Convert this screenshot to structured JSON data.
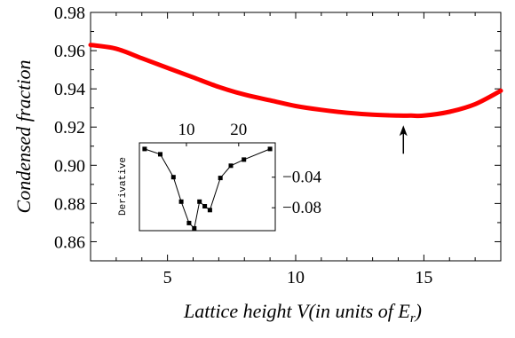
{
  "chart_data": [
    {
      "type": "line",
      "xlabel_prefix": "Lattice height ",
      "xlabel_var": "V",
      "xlabel_mid": "(in units of ",
      "xlabel_unit": "E",
      "xlabel_sub": "r",
      "xlabel_end": ")",
      "ylabel": "Condensed fraction",
      "xlim": [
        2,
        18
      ],
      "ylim": [
        0.85,
        0.98
      ],
      "xticks": [
        5,
        10,
        15
      ],
      "yticks": [
        0.86,
        0.88,
        0.9,
        0.92,
        0.94,
        0.96,
        0.98
      ],
      "ytick_labels": [
        "0.86",
        "0.88",
        "0.90",
        "0.92",
        "0.94",
        "0.96",
        "0.98"
      ],
      "series": [
        {
          "color": "#ff0000",
          "x": [
            2,
            3,
            4,
            5,
            6,
            7,
            8,
            9,
            10,
            11,
            12,
            13,
            14,
            14.5,
            15,
            16,
            17,
            18
          ],
          "y": [
            0.963,
            0.961,
            0.956,
            0.951,
            0.946,
            0.941,
            0.937,
            0.934,
            0.931,
            0.929,
            0.9275,
            0.9265,
            0.926,
            0.926,
            0.926,
            0.928,
            0.932,
            0.939
          ]
        }
      ],
      "annotation": {
        "type": "arrow",
        "x": 14.2,
        "y": 0.926,
        "label": ""
      }
    },
    {
      "type": "line",
      "inset": true,
      "ylabel": "Derivative",
      "xlim": [
        1,
        27
      ],
      "ylim": [
        -0.11,
        0.005
      ],
      "xticks": [
        10,
        20
      ],
      "xtick_position": "top",
      "yticks": [
        -0.04,
        -0.08
      ],
      "ytick_labels": [
        "−0.04",
        "−0.08"
      ],
      "ytick_position": "right",
      "series": [
        {
          "color": "#000000",
          "marker": "square",
          "x": [
            2,
            5,
            7.5,
            9,
            10.5,
            11.5,
            12.5,
            13.5,
            14.5,
            16.5,
            18.5,
            21,
            26
          ],
          "y": [
            -0.003,
            -0.01,
            -0.04,
            -0.072,
            -0.1,
            -0.107,
            -0.072,
            -0.078,
            -0.083,
            -0.041,
            -0.025,
            -0.017,
            -0.003
          ]
        }
      ]
    }
  ]
}
